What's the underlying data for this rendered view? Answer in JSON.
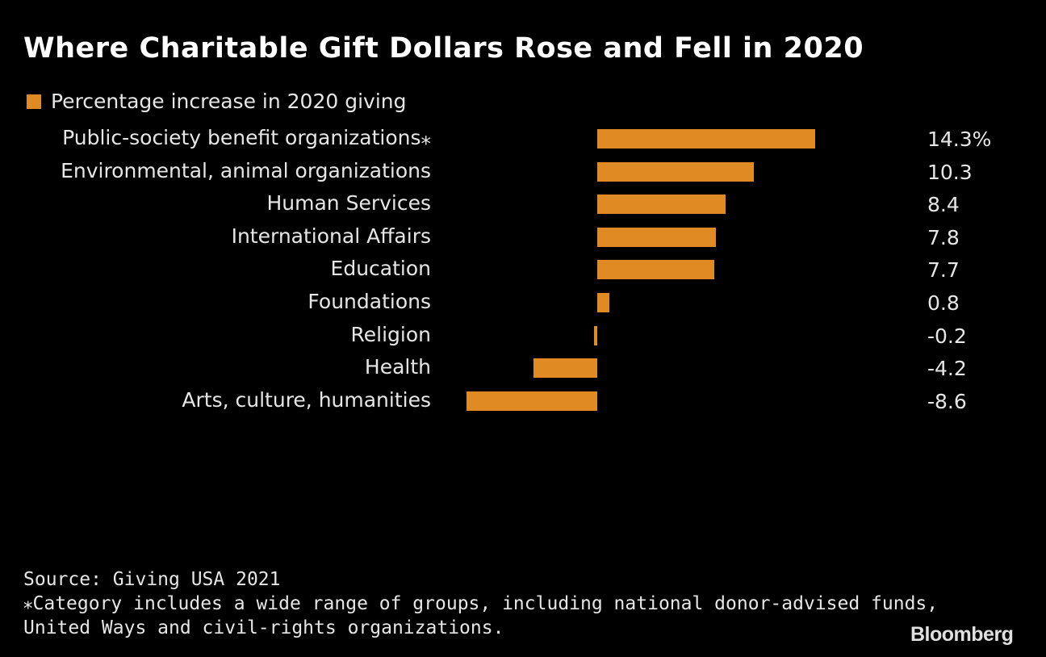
{
  "chart_data": {
    "type": "bar",
    "orientation": "horizontal",
    "title": "Where Charitable Gift Dollars Rose and Fell in 2020",
    "categories": [
      "Public-society benefit organizations⁎",
      "Environmental, animal organizations",
      "Human Services",
      "International Affairs",
      "Education",
      "Foundations",
      "Religion",
      "Health",
      "Arts, culture, humanities"
    ],
    "series": [
      {
        "name": "Percentage increase in 2020 giving",
        "values": [
          14.3,
          10.3,
          8.4,
          7.8,
          7.7,
          0.8,
          -0.2,
          -4.2,
          -8.6
        ],
        "color": "#e08a24"
      }
    ],
    "value_labels": [
      "14.3%",
      "10.3",
      "8.4",
      "7.8",
      "7.7",
      "0.8",
      "-0.2",
      "-4.2",
      "-8.6"
    ],
    "xlim": [
      -8.6,
      14.3
    ],
    "grid": false,
    "legend": "top-left"
  },
  "footer": {
    "source": "Source: Giving USA 2021",
    "note_line1": "⁎Category includes a wide range of groups, including national donor-advised funds,",
    "note_line2": "United Ways and civil-rights organizations."
  },
  "logo": "Bloomberg"
}
